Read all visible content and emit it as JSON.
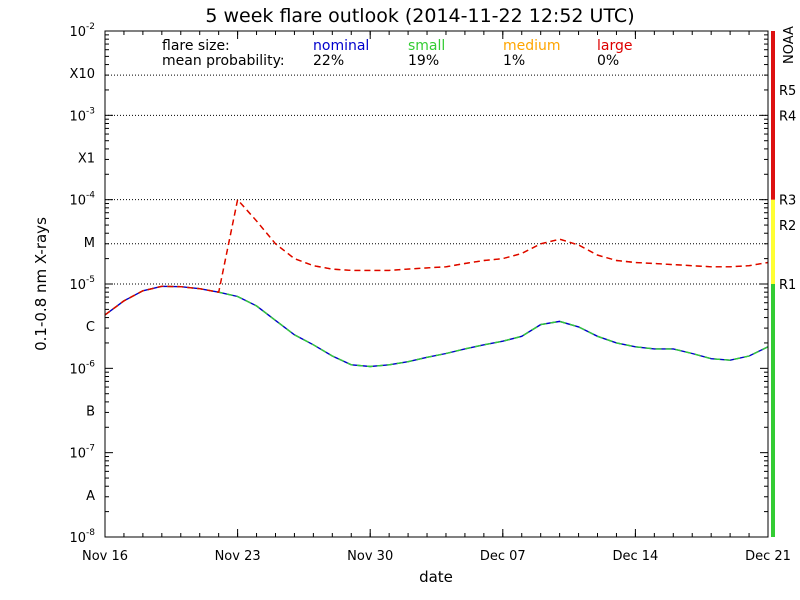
{
  "chart_data": {
    "type": "line",
    "title": "5 week flare outlook (2014-11-22 12:52 UTC)",
    "xlabel": "date",
    "ylabel": "0.1-0.8 nm X-rays",
    "x_scale": "date",
    "y_scale": "log",
    "xlim": [
      "2014-11-16",
      "2014-12-21"
    ],
    "ylim": [
      1e-08,
      0.01
    ],
    "x_ticks": [
      {
        "date": "2014-11-16",
        "label": "Nov 16"
      },
      {
        "date": "2014-11-23",
        "label": "Nov 23"
      },
      {
        "date": "2014-11-30",
        "label": "Nov 30"
      },
      {
        "date": "2014-12-07",
        "label": "Dec 07"
      },
      {
        "date": "2014-12-14",
        "label": "Dec 14"
      },
      {
        "date": "2014-12-21",
        "label": "Dec 21"
      }
    ],
    "y_ticks": [
      {
        "value": 1e-08,
        "base": "10",
        "exp": "-8"
      },
      {
        "value": 1e-07,
        "base": "10",
        "exp": "-7"
      },
      {
        "value": 1e-06,
        "base": "10",
        "exp": "-6"
      },
      {
        "value": 1e-05,
        "base": "10",
        "exp": "-5"
      },
      {
        "value": 0.0001,
        "base": "10",
        "exp": "-4"
      },
      {
        "value": 0.001,
        "base": "10",
        "exp": "-3"
      },
      {
        "value": 0.01,
        "base": "10",
        "exp": "-2"
      }
    ],
    "class_labels": [
      {
        "label": "A",
        "value": 3.16e-08
      },
      {
        "label": "B",
        "value": 3.16e-07
      },
      {
        "label": "C",
        "value": 3.16e-06
      },
      {
        "label": "M",
        "value": 3.16e-05
      },
      {
        "label": "X1",
        "value": 0.000316
      },
      {
        "label": "X10",
        "value": 0.00316
      }
    ],
    "dotted_gridlines": [
      1e-05,
      3e-05,
      0.0001,
      0.001,
      0.003
    ],
    "noaa_scale": {
      "title": "NOAA",
      "labels": [
        {
          "label": "R1",
          "value": 1e-05
        },
        {
          "label": "R2",
          "value": 5e-05
        },
        {
          "label": "R3",
          "value": 0.0001
        },
        {
          "label": "R4",
          "value": 0.001
        },
        {
          "label": "R5",
          "value": 0.002
        }
      ],
      "bands": [
        {
          "from": 1e-08,
          "to": 1e-05,
          "color": "#33cc33"
        },
        {
          "from": 1e-05,
          "to": 0.0001,
          "color": "#ffff33"
        },
        {
          "from": 0.0001,
          "to": 0.01,
          "color": "#dd1111"
        }
      ]
    },
    "legend": {
      "row1_label": "flare size:",
      "row2_label": "mean probability:",
      "entries": [
        {
          "name": "nominal",
          "probability": "22%",
          "color": "#0000cc"
        },
        {
          "name": "small",
          "probability": "19%",
          "color": "#33cc33"
        },
        {
          "name": "medium",
          "probability": "1%",
          "color": "#ffa500"
        },
        {
          "name": "large",
          "probability": "0%",
          "color": "#dd0000"
        }
      ]
    },
    "series": [
      {
        "name": "nominal",
        "color": "#0000cc",
        "style": "solid",
        "points": [
          [
            "2014-11-16T00:00",
            4.3e-06
          ],
          [
            "2014-11-17T00:00",
            6.3e-06
          ],
          [
            "2014-11-18T00:00",
            8.3e-06
          ],
          [
            "2014-11-19T00:00",
            9.4e-06
          ],
          [
            "2014-11-20T00:00",
            9.3e-06
          ],
          [
            "2014-11-21T00:00",
            8.8e-06
          ],
          [
            "2014-11-22T00:00",
            8e-06
          ],
          [
            "2014-11-23T00:00",
            7.1e-06
          ],
          [
            "2014-11-24T00:00",
            5.5e-06
          ],
          [
            "2014-11-25T00:00",
            3.7e-06
          ],
          [
            "2014-11-26T00:00",
            2.5e-06
          ],
          [
            "2014-11-27T00:00",
            1.9e-06
          ],
          [
            "2014-11-28T00:00",
            1.4e-06
          ],
          [
            "2014-11-29T00:00",
            1.1e-06
          ],
          [
            "2014-11-30T00:00",
            1.05e-06
          ],
          [
            "2014-12-01T00:00",
            1.1e-06
          ],
          [
            "2014-12-02T00:00",
            1.2e-06
          ],
          [
            "2014-12-03T00:00",
            1.35e-06
          ],
          [
            "2014-12-04T00:00",
            1.5e-06
          ],
          [
            "2014-12-05T00:00",
            1.7e-06
          ],
          [
            "2014-12-06T00:00",
            1.9e-06
          ],
          [
            "2014-12-07T00:00",
            2.1e-06
          ],
          [
            "2014-12-08T00:00",
            2.4e-06
          ],
          [
            "2014-12-09T00:00",
            3.3e-06
          ],
          [
            "2014-12-10T00:00",
            3.6e-06
          ],
          [
            "2014-12-11T00:00",
            3.1e-06
          ],
          [
            "2014-12-12T00:00",
            2.4e-06
          ],
          [
            "2014-12-13T00:00",
            2e-06
          ],
          [
            "2014-12-14T00:00",
            1.8e-06
          ],
          [
            "2014-12-15T00:00",
            1.7e-06
          ],
          [
            "2014-12-16T00:00",
            1.7e-06
          ],
          [
            "2014-12-17T00:00",
            1.5e-06
          ],
          [
            "2014-12-18T00:00",
            1.3e-06
          ],
          [
            "2014-12-19T00:00",
            1.25e-06
          ],
          [
            "2014-12-20T00:00",
            1.4e-06
          ],
          [
            "2014-12-21T00:00",
            1.8e-06
          ]
        ]
      },
      {
        "name": "small",
        "color": "#33cc33",
        "style": "dashed",
        "points": [
          [
            "2014-11-16T00:00",
            4.3e-06
          ],
          [
            "2014-11-17T00:00",
            6.3e-06
          ],
          [
            "2014-11-18T00:00",
            8.3e-06
          ],
          [
            "2014-11-19T00:00",
            9.4e-06
          ],
          [
            "2014-11-20T00:00",
            9.3e-06
          ],
          [
            "2014-11-21T00:00",
            8.8e-06
          ],
          [
            "2014-11-22T00:00",
            8e-06
          ],
          [
            "2014-11-23T00:00",
            7.1e-06
          ],
          [
            "2014-11-24T00:00",
            5.5e-06
          ],
          [
            "2014-11-25T00:00",
            3.7e-06
          ],
          [
            "2014-11-26T00:00",
            2.5e-06
          ],
          [
            "2014-11-27T00:00",
            1.9e-06
          ],
          [
            "2014-11-28T00:00",
            1.4e-06
          ],
          [
            "2014-11-29T00:00",
            1.1e-06
          ],
          [
            "2014-11-30T00:00",
            1.05e-06
          ],
          [
            "2014-12-01T00:00",
            1.1e-06
          ],
          [
            "2014-12-02T00:00",
            1.2e-06
          ],
          [
            "2014-12-03T00:00",
            1.35e-06
          ],
          [
            "2014-12-04T00:00",
            1.5e-06
          ],
          [
            "2014-12-05T00:00",
            1.7e-06
          ],
          [
            "2014-12-06T00:00",
            1.9e-06
          ],
          [
            "2014-12-07T00:00",
            2.1e-06
          ],
          [
            "2014-12-08T00:00",
            2.4e-06
          ],
          [
            "2014-12-09T00:00",
            3.3e-06
          ],
          [
            "2014-12-10T00:00",
            3.6e-06
          ],
          [
            "2014-12-11T00:00",
            3.1e-06
          ],
          [
            "2014-12-12T00:00",
            2.4e-06
          ],
          [
            "2014-12-13T00:00",
            2e-06
          ],
          [
            "2014-12-14T00:00",
            1.8e-06
          ],
          [
            "2014-12-15T00:00",
            1.7e-06
          ],
          [
            "2014-12-16T00:00",
            1.7e-06
          ],
          [
            "2014-12-17T00:00",
            1.5e-06
          ],
          [
            "2014-12-18T00:00",
            1.3e-06
          ],
          [
            "2014-12-19T00:00",
            1.25e-06
          ],
          [
            "2014-12-20T00:00",
            1.4e-06
          ],
          [
            "2014-12-21T00:00",
            1.8e-06
          ]
        ]
      },
      {
        "name": "medium",
        "color": "#ffa500",
        "style": "dashed",
        "points": [
          [
            "2014-11-16T00:00",
            4.3e-06
          ],
          [
            "2014-11-17T00:00",
            6.3e-06
          ],
          [
            "2014-11-18T00:00",
            8.3e-06
          ],
          [
            "2014-11-19T00:00",
            9.4e-06
          ],
          [
            "2014-11-20T00:00",
            9.3e-06
          ],
          [
            "2014-11-21T00:00",
            8.8e-06
          ],
          [
            "2014-11-22T00:00",
            8e-06
          ],
          [
            "2014-11-23T00:00",
            0.0001
          ],
          [
            "2014-11-24T00:00",
            5.6e-05
          ],
          [
            "2014-11-25T00:00",
            3e-05
          ],
          [
            "2014-11-26T00:00",
            2e-05
          ],
          [
            "2014-11-27T00:00",
            1.65e-05
          ],
          [
            "2014-11-28T00:00",
            1.5e-05
          ],
          [
            "2014-11-29T00:00",
            1.45e-05
          ],
          [
            "2014-11-30T00:00",
            1.45e-05
          ],
          [
            "2014-12-01T00:00",
            1.45e-05
          ],
          [
            "2014-12-02T00:00",
            1.5e-05
          ],
          [
            "2014-12-03T00:00",
            1.55e-05
          ],
          [
            "2014-12-04T00:00",
            1.6e-05
          ],
          [
            "2014-12-05T00:00",
            1.75e-05
          ],
          [
            "2014-12-06T00:00",
            1.9e-05
          ],
          [
            "2014-12-07T00:00",
            2e-05
          ],
          [
            "2014-12-08T00:00",
            2.3e-05
          ],
          [
            "2014-12-09T00:00",
            3e-05
          ],
          [
            "2014-12-10T00:00",
            3.4e-05
          ],
          [
            "2014-12-11T00:00",
            2.9e-05
          ],
          [
            "2014-12-12T00:00",
            2.2e-05
          ],
          [
            "2014-12-13T00:00",
            1.9e-05
          ],
          [
            "2014-12-14T00:00",
            1.8e-05
          ],
          [
            "2014-12-15T00:00",
            1.75e-05
          ],
          [
            "2014-12-16T00:00",
            1.7e-05
          ],
          [
            "2014-12-17T00:00",
            1.65e-05
          ],
          [
            "2014-12-18T00:00",
            1.6e-05
          ],
          [
            "2014-12-19T00:00",
            1.6e-05
          ],
          [
            "2014-12-20T00:00",
            1.65e-05
          ],
          [
            "2014-12-21T00:00",
            1.8e-05
          ]
        ]
      },
      {
        "name": "large",
        "color": "#dd0000",
        "style": "dashed",
        "points": [
          [
            "2014-11-16T00:00",
            4.3e-06
          ],
          [
            "2014-11-17T00:00",
            6.3e-06
          ],
          [
            "2014-11-18T00:00",
            8.3e-06
          ],
          [
            "2014-11-19T00:00",
            9.4e-06
          ],
          [
            "2014-11-20T00:00",
            9.3e-06
          ],
          [
            "2014-11-21T00:00",
            8.8e-06
          ],
          [
            "2014-11-22T00:00",
            8e-06
          ],
          [
            "2014-11-23T00:00",
            0.0001
          ],
          [
            "2014-11-24T00:00",
            5.6e-05
          ],
          [
            "2014-11-25T00:00",
            3e-05
          ],
          [
            "2014-11-26T00:00",
            2e-05
          ],
          [
            "2014-11-27T00:00",
            1.65e-05
          ],
          [
            "2014-11-28T00:00",
            1.5e-05
          ],
          [
            "2014-11-29T00:00",
            1.45e-05
          ],
          [
            "2014-11-30T00:00",
            1.45e-05
          ],
          [
            "2014-12-01T00:00",
            1.45e-05
          ],
          [
            "2014-12-02T00:00",
            1.5e-05
          ],
          [
            "2014-12-03T00:00",
            1.55e-05
          ],
          [
            "2014-12-04T00:00",
            1.6e-05
          ],
          [
            "2014-12-05T00:00",
            1.75e-05
          ],
          [
            "2014-12-06T00:00",
            1.9e-05
          ],
          [
            "2014-12-07T00:00",
            2e-05
          ],
          [
            "2014-12-08T00:00",
            2.3e-05
          ],
          [
            "2014-12-09T00:00",
            3e-05
          ],
          [
            "2014-12-10T00:00",
            3.4e-05
          ],
          [
            "2014-12-11T00:00",
            2.9e-05
          ],
          [
            "2014-12-12T00:00",
            2.2e-05
          ],
          [
            "2014-12-13T00:00",
            1.9e-05
          ],
          [
            "2014-12-14T00:00",
            1.8e-05
          ],
          [
            "2014-12-15T00:00",
            1.75e-05
          ],
          [
            "2014-12-16T00:00",
            1.7e-05
          ],
          [
            "2014-12-17T00:00",
            1.65e-05
          ],
          [
            "2014-12-18T00:00",
            1.6e-05
          ],
          [
            "2014-12-19T00:00",
            1.6e-05
          ],
          [
            "2014-12-20T00:00",
            1.65e-05
          ],
          [
            "2014-12-21T00:00",
            1.8e-05
          ]
        ]
      }
    ]
  }
}
